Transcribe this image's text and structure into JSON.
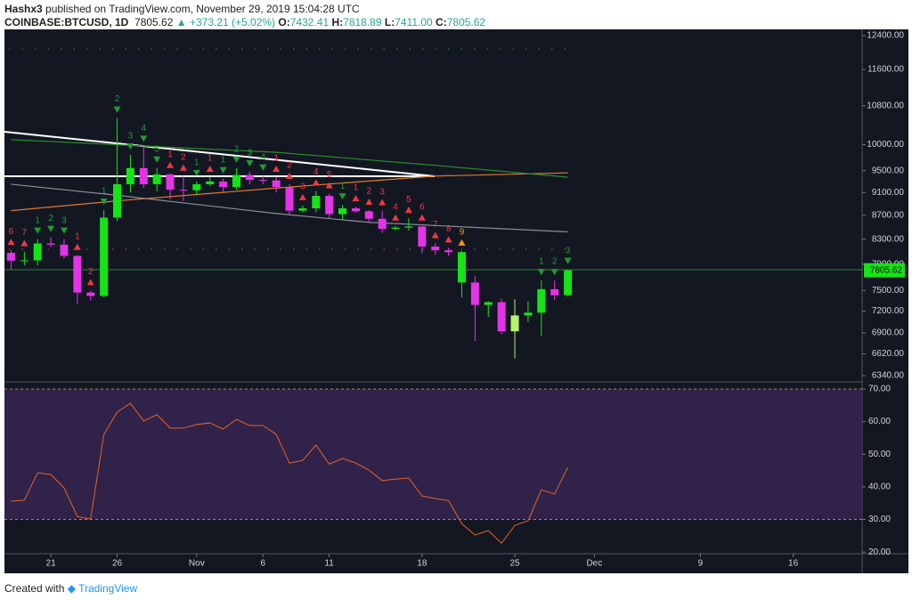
{
  "header": {
    "author": "Hashx3",
    "published": " published on TradingView.com, November 29, 2019 15:04:28 UTC",
    "symbol": "COINBASE:BTCUSD, 1D",
    "last": "7805.62",
    "change": "+373.21 (+5.02%)",
    "o_label": "O:",
    "o": "7432.41",
    "h_label": "H:",
    "h": "7818.89",
    "l_label": "L:",
    "l": "7411.00",
    "c_label": "C:",
    "c": "7805.62"
  },
  "footer": {
    "created": "Created with",
    "brand": "TradingView"
  },
  "chart_data": [
    {
      "type": "candlestick",
      "log_scale": true,
      "grid": false,
      "ylim": [
        6274,
        12554
      ],
      "yticks": [
        {
          "value": 12400,
          "label": "12400.00"
        },
        {
          "value": 11600,
          "label": "11600.00"
        },
        {
          "value": 10800,
          "label": "10800.00"
        },
        {
          "value": 10000,
          "label": "10000.00"
        },
        {
          "value": 9500,
          "label": "9500.00"
        },
        {
          "value": 9100,
          "label": "9100.00"
        },
        {
          "value": 8700,
          "label": "8700.00"
        },
        {
          "value": 8300,
          "label": "8300.00"
        },
        {
          "value": 7900,
          "label": "7900.00"
        },
        {
          "value": 7500,
          "label": "7500.00"
        },
        {
          "value": 7200,
          "label": "7200.00"
        },
        {
          "value": 6900,
          "label": "6900.00"
        },
        {
          "value": 6620,
          "label": "6620.00"
        },
        {
          "value": 6340,
          "label": "6340.00"
        }
      ],
      "xlim": [
        -0.5,
        64.2
      ],
      "xticks": [
        {
          "value": 3,
          "label": "21"
        },
        {
          "value": 8,
          "label": "26"
        },
        {
          "value": 14,
          "label": "Nov"
        },
        {
          "value": 19,
          "label": "6"
        },
        {
          "value": 24,
          "label": "11"
        },
        {
          "value": 31,
          "label": "18"
        },
        {
          "value": 38,
          "label": "25"
        },
        {
          "value": 44,
          "label": "Dec"
        },
        {
          "value": 52,
          "label": "9"
        },
        {
          "value": 59,
          "label": "16"
        }
      ],
      "candles": {
        "x": [
          0,
          1,
          2,
          3,
          4,
          5,
          6,
          7,
          8,
          9,
          10,
          11,
          12,
          13,
          14,
          15,
          16,
          17,
          18,
          19,
          20,
          21,
          22,
          23,
          24,
          25,
          26,
          27,
          28,
          29,
          30,
          31,
          32,
          33,
          34,
          35,
          36,
          37,
          38,
          39,
          40,
          41,
          42
        ],
        "open": [
          8080,
          7955,
          7960,
          8230,
          8210,
          8030,
          7470,
          7420,
          8660,
          9250,
          9550,
          9250,
          9430,
          9150,
          9140,
          9250,
          9300,
          9200,
          9420,
          9330,
          9320,
          9200,
          8780,
          8820,
          9040,
          8720,
          8820,
          8770,
          8640,
          8470,
          8490,
          8510,
          8180,
          8120,
          8090,
          7620,
          7290,
          7330,
          6920,
          7140,
          7180,
          7520,
          7432.41
        ],
        "high": [
          8120,
          8100,
          8300,
          8330,
          8300,
          8040,
          7500,
          8790,
          10540,
          9800,
          9950,
          9550,
          9450,
          9400,
          9300,
          9380,
          9350,
          9550,
          9480,
          9400,
          9380,
          9250,
          8870,
          9130,
          9080,
          8880,
          8850,
          8790,
          8780,
          8520,
          8650,
          8520,
          8230,
          8160,
          8110,
          7720,
          7340,
          7380,
          7370,
          7340,
          7650,
          7650,
          7818.89
        ],
        "low": [
          7810,
          7880,
          7880,
          8170,
          7990,
          7300,
          7350,
          7400,
          8600,
          9100,
          9180,
          9120,
          8980,
          8950,
          9050,
          9220,
          9100,
          9150,
          9250,
          9250,
          9100,
          8700,
          8750,
          8750,
          8650,
          8620,
          8740,
          8580,
          8400,
          8450,
          8440,
          8070,
          8050,
          8030,
          7400,
          6790,
          7120,
          6880,
          6560,
          7050,
          6860,
          7360,
          7411
        ],
        "close": [
          7955,
          7960,
          8230,
          8210,
          8030,
          7470,
          7420,
          8660,
          9250,
          9550,
          9250,
          9430,
          9150,
          9140,
          9250,
          9300,
          9200,
          9420,
          9330,
          9320,
          9200,
          8780,
          8820,
          9040,
          8720,
          8820,
          8770,
          8640,
          8470,
          8490,
          8510,
          8180,
          8120,
          8090,
          7620,
          7290,
          7330,
          6920,
          7140,
          7180,
          7520,
          7430,
          7805.62
        ],
        "colors": [
          "#e533e8",
          "#16e316",
          "#16e316",
          "#e533e8",
          "#e533e8",
          "#e533e8",
          "#e533e8",
          "#16e316",
          "#16e316",
          "#16e316",
          "#e533e8",
          "#16e316",
          "#e533e8",
          "#e533e8",
          "#16e316",
          "#16e316",
          "#e533e8",
          "#16e316",
          "#e533e8",
          "#e533e8",
          "#e533e8",
          "#e533e8",
          "#16e316",
          "#16e316",
          "#e533e8",
          "#16e316",
          "#e533e8",
          "#e533e8",
          "#e533e8",
          "#16e316",
          "#16e316",
          "#e533e8",
          "#e533e8",
          "#e533e8",
          "#16e316",
          "#e533e8",
          "#16e316",
          "#e533e8",
          "#b6f56a",
          "#16e316",
          "#16e316",
          "#e533e8",
          "#16e316"
        ]
      },
      "series": [
        {
          "color": "#e07b2a",
          "x": [
            0,
            8,
            20,
            32,
            42
          ],
          "values": [
            8780,
            8950,
            9180,
            9400,
            9460
          ]
        },
        {
          "color": "#2a8a2a",
          "x": [
            0,
            20,
            32,
            42
          ],
          "values": [
            10100,
            9850,
            9600,
            9380
          ]
        },
        {
          "color": "#8a8d96",
          "x": [
            0,
            8,
            20,
            27,
            42
          ],
          "values": [
            9250,
            9050,
            8730,
            8580,
            8420
          ]
        }
      ],
      "td": [
        {
          "color": "#f23645",
          "marker": "up",
          "points": [
            {
              "x": 0,
              "label": 6
            },
            {
              "x": 1,
              "label": 7
            },
            {
              "x": 5,
              "label": 1
            },
            {
              "x": 6,
              "label": 2
            },
            {
              "x": 12,
              "label": 1
            },
            {
              "x": 13,
              "label": 2
            },
            {
              "x": 15,
              "label": 1
            },
            {
              "x": 20,
              "label": 1
            },
            {
              "x": 21,
              "label": 2
            },
            {
              "x": 22,
              "label": 3
            },
            {
              "x": 23,
              "label": 4
            },
            {
              "x": 24,
              "label": 5
            },
            {
              "x": 26,
              "label": 1
            },
            {
              "x": 27,
              "label": 2
            },
            {
              "x": 28,
              "label": 3
            },
            {
              "x": 29,
              "label": 4
            },
            {
              "x": 30,
              "label": 5
            },
            {
              "x": 31,
              "label": 6
            },
            {
              "x": 32,
              "label": 7
            },
            {
              "x": 33,
              "label": 8
            }
          ]
        },
        {
          "color": "#1f9d34",
          "marker": "down",
          "points": [
            {
              "x": 2,
              "label": 1
            },
            {
              "x": 3,
              "label": 2
            },
            {
              "x": 4,
              "label": 3
            },
            {
              "x": 7,
              "label": 1
            },
            {
              "x": 8,
              "label": 2
            },
            {
              "x": 9,
              "label": 3
            },
            {
              "x": 10,
              "label": 4
            },
            {
              "x": 11,
              "label": 5
            },
            {
              "x": 14,
              "label": 1
            },
            {
              "x": 16,
              "label": 1
            },
            {
              "x": 17,
              "label": 2
            },
            {
              "x": 18,
              "label": 3
            },
            {
              "x": 19,
              "label": 4
            },
            {
              "x": 25,
              "label": 1
            },
            {
              "x": 40,
              "label": 1
            },
            {
              "x": 41,
              "label": 2
            },
            {
              "x": 42,
              "label": 3
            }
          ]
        },
        {
          "color": "#ff9800",
          "marker": "up",
          "points": [
            {
              "x": 34,
              "label": 9
            }
          ]
        }
      ],
      "price_tag": "7805.62",
      "price_tag_color": "#16e316"
    },
    {
      "type": "line",
      "color": "#e0642a",
      "ylim": [
        19.5,
        71.9
      ],
      "yticks": [
        {
          "value": 70,
          "label": "70.00"
        },
        {
          "value": 60,
          "label": "60.00"
        },
        {
          "value": 50,
          "label": "50.00"
        },
        {
          "value": 40,
          "label": "40.00"
        },
        {
          "value": 30,
          "label": "30.00"
        },
        {
          "value": 20,
          "label": "20.00"
        }
      ],
      "bands": [
        30,
        70
      ],
      "band_color": "#3a2554",
      "xlim": [
        -0.5,
        64.2
      ],
      "x": [
        0,
        1,
        2,
        3,
        4,
        5,
        6,
        7,
        8,
        9,
        10,
        11,
        12,
        13,
        14,
        15,
        16,
        17,
        18,
        19,
        20,
        21,
        22,
        23,
        24,
        25,
        26,
        27,
        28,
        29,
        30,
        31,
        32,
        33,
        34,
        35,
        36,
        37,
        38,
        39,
        40,
        41,
        42
      ],
      "values": [
        35.6,
        35.9,
        44.3,
        43.8,
        39.7,
        30.9,
        30.1,
        56.1,
        62.9,
        65.6,
        60.2,
        62.1,
        58.0,
        58.0,
        59.1,
        59.6,
        57.7,
        60.7,
        58.8,
        58.8,
        56.1,
        47.3,
        48.1,
        52.8,
        47.0,
        48.7,
        47.3,
        45.1,
        41.9,
        42.4,
        42.7,
        37.2,
        36.4,
        35.8,
        28.7,
        25.2,
        26.6,
        22.7,
        28.2,
        29.6,
        39.1,
        37.8,
        46.0
      ]
    }
  ]
}
